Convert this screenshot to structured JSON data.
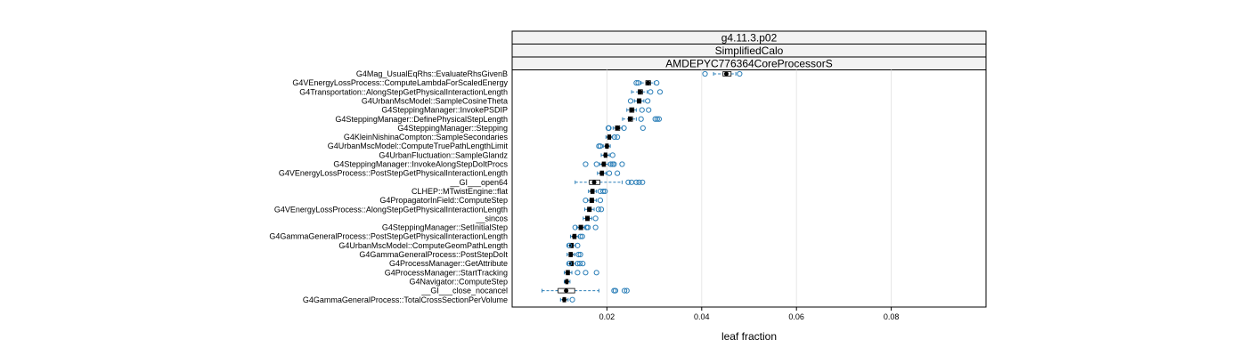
{
  "chart_data": {
    "type": "boxplot",
    "strips": [
      "g4.11.3.p02",
      "SimplifiedCalo",
      "AMDEPYC776364CoreProcessorS"
    ],
    "xlabel": "leaf fraction",
    "xlim": [
      0.0,
      0.1
    ],
    "xticks": [
      0.02,
      0.04,
      0.06,
      0.08
    ],
    "xtick_labels": [
      "0.02",
      "0.04",
      "0.06",
      "0.08"
    ],
    "grid": true,
    "categories": [
      "G4Mag_UsualEqRhs::EvaluateRhsGivenB",
      "G4VEnergyLossProcess::ComputeLambdaForScaledEnergy",
      "G4Transportation::AlongStepGetPhysicalInteractionLength",
      "G4UrbanMscModel::SampleCosineTheta",
      "G4SteppingManager::InvokePSDIP",
      "G4SteppingManager::DefinePhysicalStepLength",
      "G4SteppingManager::Stepping",
      "G4KleinNishinaCompton::SampleSecondaries",
      "G4UrbanMscModel::ComputeTruePathLengthLimit",
      "G4UrbanFluctuation::SampleGlandz",
      "G4SteppingManager::InvokeAlongStepDoItProcs",
      "G4VEnergyLossProcess::PostStepGetPhysicalInteractionLength",
      "__GI___open64",
      "CLHEP::MTwistEngine::flat",
      "G4PropagatorInField::ComputeStep",
      "G4VEnergyLossProcess::AlongStepGetPhysicalInteractionLength",
      "__sincos",
      "G4SteppingManager::SetInitialStep",
      "G4GammaGeneralProcess::PostStepGetPhysicalInteractionLength",
      "G4UrbanMscModel::ComputeGeomPathLength",
      "G4GammaGeneralProcess::PostStepDoIt",
      "G4ProcessManager::GetAttribute",
      "G4ProcessManager::StartTracking",
      "G4Navigator::ComputeStep",
      "__GI___close_nocancel",
      "G4GammaGeneralProcess::TotalCrossSectionPerVolume"
    ],
    "boxes": [
      {
        "wlo": 0.0425,
        "q1": 0.0445,
        "median": 0.0452,
        "q3": 0.0462,
        "whi": 0.0472,
        "outliers": [
          0.0407,
          0.048
        ]
      },
      {
        "wlo": 0.0272,
        "q1": 0.0282,
        "median": 0.0287,
        "q3": 0.0292,
        "whi": 0.03,
        "outliers": [
          0.0262,
          0.0266,
          0.0305
        ]
      },
      {
        "wlo": 0.0252,
        "q1": 0.0266,
        "median": 0.027,
        "q3": 0.0275,
        "whi": 0.0285,
        "outliers": [
          0.0292,
          0.0312
        ]
      },
      {
        "wlo": 0.0258,
        "q1": 0.0264,
        "median": 0.0268,
        "q3": 0.0272,
        "whi": 0.0278,
        "outliers": [
          0.025,
          0.0286
        ]
      },
      {
        "wlo": 0.0242,
        "q1": 0.0248,
        "median": 0.0252,
        "q3": 0.0257,
        "whi": 0.0262,
        "outliers": [
          0.0274,
          0.0288
        ]
      },
      {
        "wlo": 0.0233,
        "q1": 0.0245,
        "median": 0.0249,
        "q3": 0.0254,
        "whi": 0.0262,
        "outliers": [
          0.0272,
          0.0302,
          0.0306,
          0.031
        ]
      },
      {
        "wlo": 0.0213,
        "q1": 0.0218,
        "median": 0.0222,
        "q3": 0.0227,
        "whi": 0.0232,
        "outliers": [
          0.0203,
          0.0204,
          0.0236,
          0.0276
        ]
      },
      {
        "wlo": 0.0198,
        "q1": 0.0202,
        "median": 0.0205,
        "q3": 0.0208,
        "whi": 0.0212,
        "outliers": [
          0.0216,
          0.0222
        ]
      },
      {
        "wlo": 0.0192,
        "q1": 0.0197,
        "median": 0.02,
        "q3": 0.0203,
        "whi": 0.0207,
        "outliers": [
          0.0183,
          0.0186
        ]
      },
      {
        "wlo": 0.0188,
        "q1": 0.0194,
        "median": 0.0197,
        "q3": 0.02,
        "whi": 0.0205,
        "outliers": [
          0.0212
        ]
      },
      {
        "wlo": 0.0185,
        "q1": 0.019,
        "median": 0.0193,
        "q3": 0.0197,
        "whi": 0.0203,
        "outliers": [
          0.0155,
          0.0178,
          0.0208,
          0.0212,
          0.0215,
          0.0232
        ]
      },
      {
        "wlo": 0.018,
        "q1": 0.0186,
        "median": 0.0189,
        "q3": 0.0193,
        "whi": 0.0198,
        "outliers": [
          0.0205,
          0.0222
        ]
      },
      {
        "wlo": 0.0133,
        "q1": 0.0163,
        "median": 0.0173,
        "q3": 0.0185,
        "whi": 0.0232,
        "outliers": [
          0.0245,
          0.0252,
          0.0262,
          0.0268,
          0.0275
        ]
      },
      {
        "wlo": 0.0161,
        "q1": 0.0166,
        "median": 0.0169,
        "q3": 0.0173,
        "whi": 0.0178,
        "outliers": [
          0.0186,
          0.0192,
          0.0196
        ]
      },
      {
        "wlo": 0.0159,
        "q1": 0.0164,
        "median": 0.0168,
        "q3": 0.0172,
        "whi": 0.0178,
        "outliers": [
          0.0155,
          0.0186
        ]
      },
      {
        "wlo": 0.0153,
        "q1": 0.0159,
        "median": 0.0163,
        "q3": 0.0167,
        "whi": 0.0173,
        "outliers": [
          0.0182,
          0.0188
        ]
      },
      {
        "wlo": 0.015,
        "q1": 0.0155,
        "median": 0.0159,
        "q3": 0.0163,
        "whi": 0.0168,
        "outliers": [
          0.0176
        ]
      },
      {
        "wlo": 0.0136,
        "q1": 0.0141,
        "median": 0.0145,
        "q3": 0.0149,
        "whi": 0.0154,
        "outliers": [
          0.0133,
          0.0157,
          0.016,
          0.0176
        ]
      },
      {
        "wlo": 0.0123,
        "q1": 0.0128,
        "median": 0.0131,
        "q3": 0.0135,
        "whi": 0.014,
        "outliers": [
          0.0144,
          0.0148
        ]
      },
      {
        "wlo": 0.0117,
        "q1": 0.0122,
        "median": 0.0125,
        "q3": 0.0129,
        "whi": 0.0134,
        "outliers": [
          0.012,
          0.0138
        ]
      },
      {
        "wlo": 0.0116,
        "q1": 0.012,
        "median": 0.0124,
        "q3": 0.0127,
        "whi": 0.0132,
        "outliers": [
          0.014,
          0.0144
        ]
      },
      {
        "wlo": 0.0117,
        "q1": 0.0122,
        "median": 0.0125,
        "q3": 0.0129,
        "whi": 0.0134,
        "outliers": [
          0.012,
          0.0138,
          0.0143,
          0.0149
        ]
      },
      {
        "wlo": 0.011,
        "q1": 0.0114,
        "median": 0.0117,
        "q3": 0.0121,
        "whi": 0.0126,
        "outliers": [
          0.0138,
          0.0155,
          0.0178
        ]
      },
      {
        "wlo": 0.011,
        "q1": 0.0113,
        "median": 0.0115,
        "q3": 0.0118,
        "whi": 0.0122,
        "outliers": []
      },
      {
        "wlo": 0.0063,
        "q1": 0.0097,
        "median": 0.0114,
        "q3": 0.0132,
        "whi": 0.0183,
        "outliers": [
          0.0215,
          0.0218,
          0.0237,
          0.0242
        ]
      },
      {
        "wlo": 0.0102,
        "q1": 0.0107,
        "median": 0.011,
        "q3": 0.0113,
        "whi": 0.0118,
        "outliers": [
          0.0127
        ]
      }
    ]
  }
}
